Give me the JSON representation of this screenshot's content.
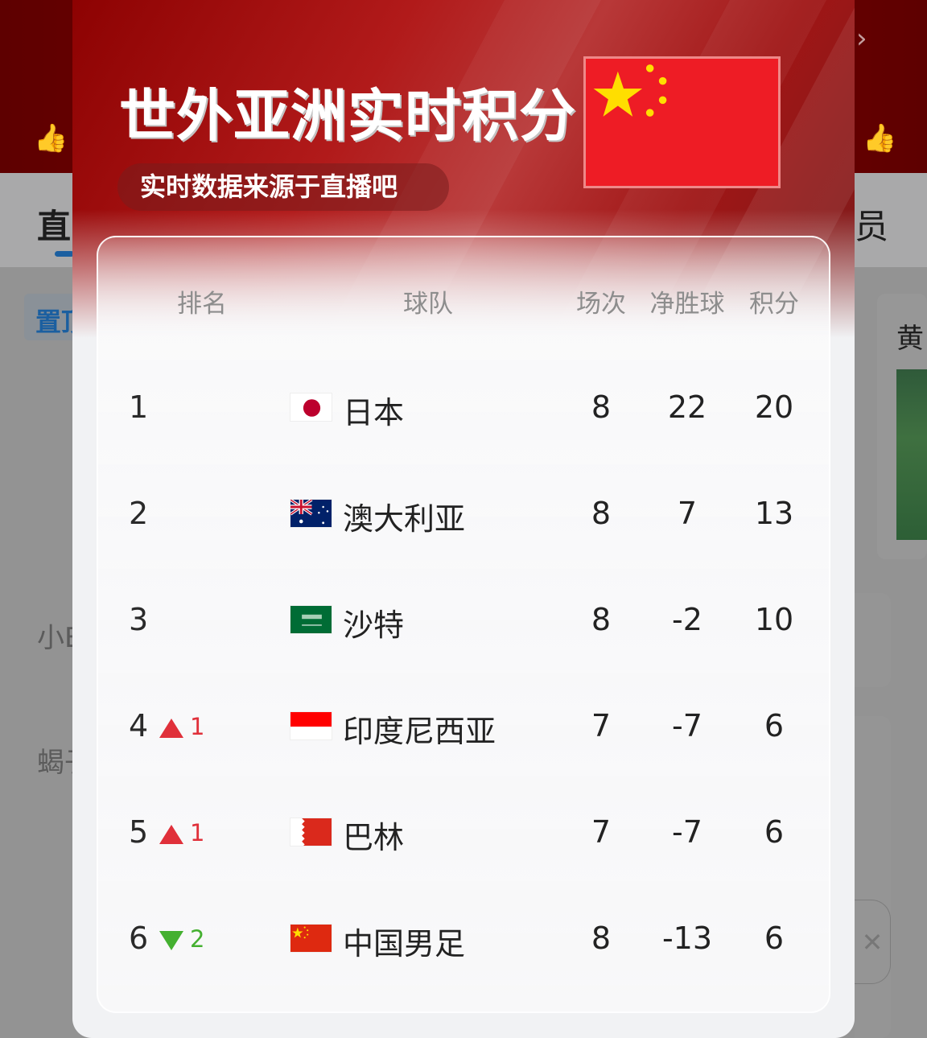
{
  "background": {
    "tab_left": "直",
    "tab_right": "员",
    "pin_label": "置顶",
    "side_items": [
      "小E",
      "蝎子"
    ],
    "right_card_title": "黄"
  },
  "header": {
    "title": "世外亚洲实时积分",
    "subtitle": "实时数据来源于直播吧",
    "flag": "china-flag"
  },
  "table": {
    "columns": [
      "排名",
      "球队",
      "场次",
      "净胜球",
      "积分"
    ],
    "rows": [
      {
        "rank": "1",
        "change_dir": "",
        "change": "",
        "flag": "japan",
        "team": "日本",
        "played": "8",
        "gd": "22",
        "points": "20"
      },
      {
        "rank": "2",
        "change_dir": "",
        "change": "",
        "flag": "australia",
        "team": "澳大利亚",
        "played": "8",
        "gd": "7",
        "points": "13"
      },
      {
        "rank": "3",
        "change_dir": "",
        "change": "",
        "flag": "saudi-arabia",
        "team": "沙特",
        "played": "8",
        "gd": "-2",
        "points": "10"
      },
      {
        "rank": "4",
        "change_dir": "up",
        "change": "1",
        "flag": "indonesia",
        "team": "印度尼西亚",
        "played": "7",
        "gd": "-7",
        "points": "6"
      },
      {
        "rank": "5",
        "change_dir": "up",
        "change": "1",
        "flag": "bahrain",
        "team": "巴林",
        "played": "7",
        "gd": "-7",
        "points": "6"
      },
      {
        "rank": "6",
        "change_dir": "down",
        "change": "2",
        "flag": "china",
        "team": "中国男足",
        "played": "8",
        "gd": "-13",
        "points": "6"
      }
    ]
  },
  "colors": {
    "up": "#e0303a",
    "down": "#44b030",
    "accent": "#b11a1a"
  }
}
